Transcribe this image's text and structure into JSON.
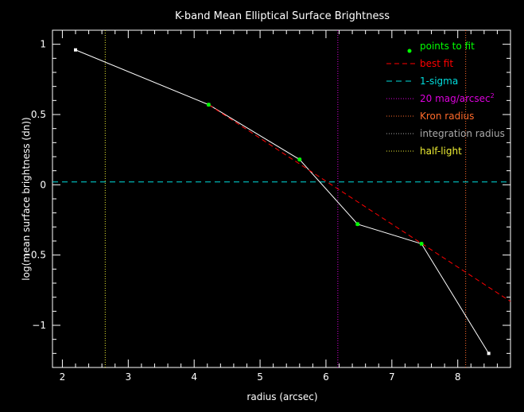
{
  "chart_data": {
    "type": "line",
    "title": "K-band Mean Elliptical Surface Brightness",
    "xlabel": "radius (arcsec)",
    "ylabel": "log(mean surface brightness (dn))",
    "xlim": [
      1.85,
      8.8
    ],
    "ylim": [
      -1.3,
      1.1
    ],
    "xticks": [
      2,
      3,
      4,
      5,
      6,
      7,
      8
    ],
    "yticks": [
      1,
      0.5,
      0,
      -0.5,
      -1
    ],
    "xtick_labels": [
      "2",
      "3",
      "4",
      "5",
      "6",
      "7",
      "8"
    ],
    "ytick_labels": [
      "1",
      "0.5",
      "0",
      "−0.5",
      "−1"
    ],
    "grid": false,
    "legend_position": "top-right",
    "profile": {
      "x": [
        2.2,
        4.22,
        5.6,
        6.48,
        7.45,
        8.47
      ],
      "y": [
        0.96,
        0.57,
        0.18,
        -0.28,
        -0.42,
        -1.2
      ],
      "color": "#ffffff"
    },
    "fit_points": {
      "name": "points to fit",
      "x": [
        4.22,
        5.6,
        6.48,
        7.45
      ],
      "y": [
        0.57,
        0.18,
        -0.28,
        -0.42
      ],
      "color": "#00ff00"
    },
    "best_fit": {
      "name": "best fit",
      "x": [
        4.22,
        8.8
      ],
      "y": [
        0.57,
        -0.83
      ],
      "color": "#ff0000"
    },
    "one_sigma": {
      "name": "1-sigma",
      "y": 0.02,
      "color": "#00dddd"
    },
    "vlines": [
      {
        "name": "20 mag/arcsec",
        "sup": "2",
        "x": 6.18,
        "color": "#dd00dd"
      },
      {
        "name": "Kron radius",
        "x": 8.12,
        "color": "#ff6a2a"
      },
      {
        "name": "integration radius",
        "x": null,
        "color": "#aaaaaa"
      },
      {
        "name": "half-light",
        "x": 2.65,
        "color": "#eeee33"
      }
    ]
  }
}
